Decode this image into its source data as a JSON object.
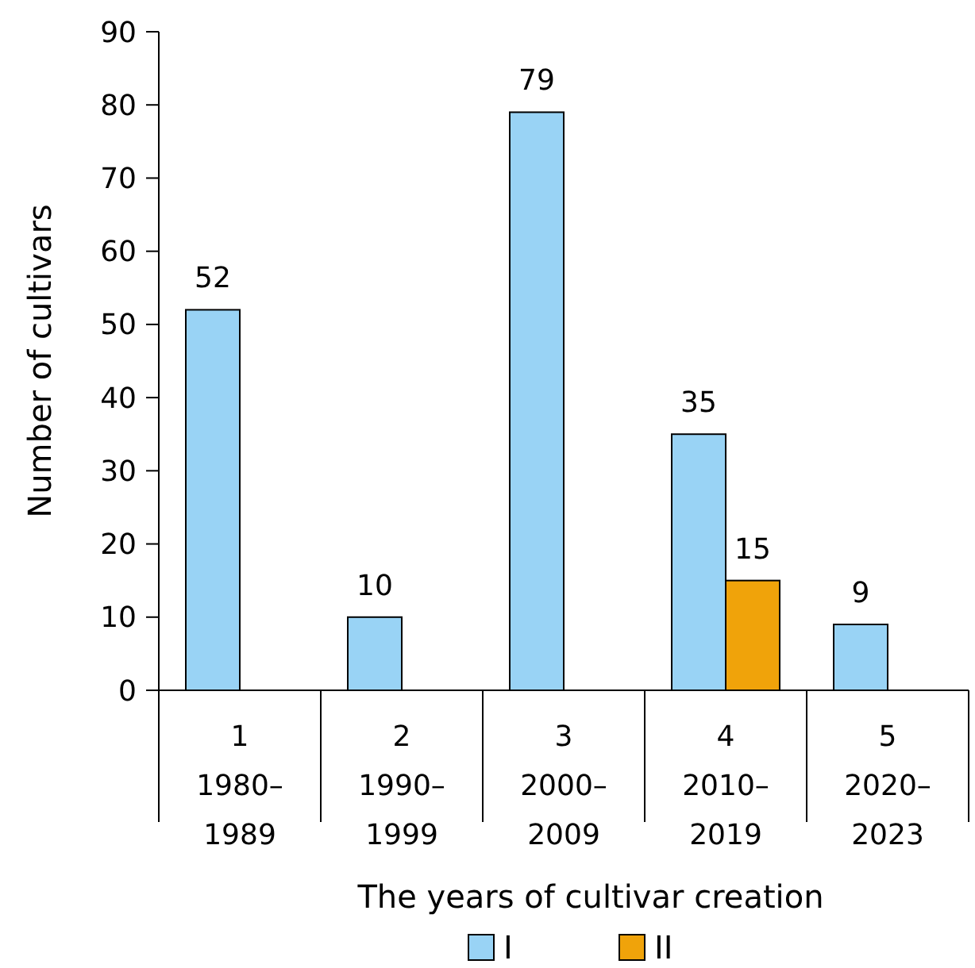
{
  "chart_data": {
    "type": "bar",
    "xlabel": "The years of cultivar creation",
    "ylabel": "Number of cultivars",
    "categories": [
      "1\n1980–\n1989",
      "2\n1990–\n1999",
      "3\n2000–\n2009",
      "4\n2010–\n2019",
      "5\n2020–\n2023"
    ],
    "series": [
      {
        "name": "I",
        "color": "#99d3f5",
        "values": [
          52,
          10,
          79,
          35,
          9
        ]
      },
      {
        "name": "II",
        "color": "#f0a30a",
        "values": [
          null,
          null,
          null,
          15,
          null
        ]
      }
    ],
    "ylim": [
      0,
      90
    ],
    "yticks": [
      0,
      10,
      20,
      30,
      40,
      50,
      60,
      70,
      80,
      90
    ],
    "data_labels": true,
    "legend": "bottom",
    "grid": false
  }
}
